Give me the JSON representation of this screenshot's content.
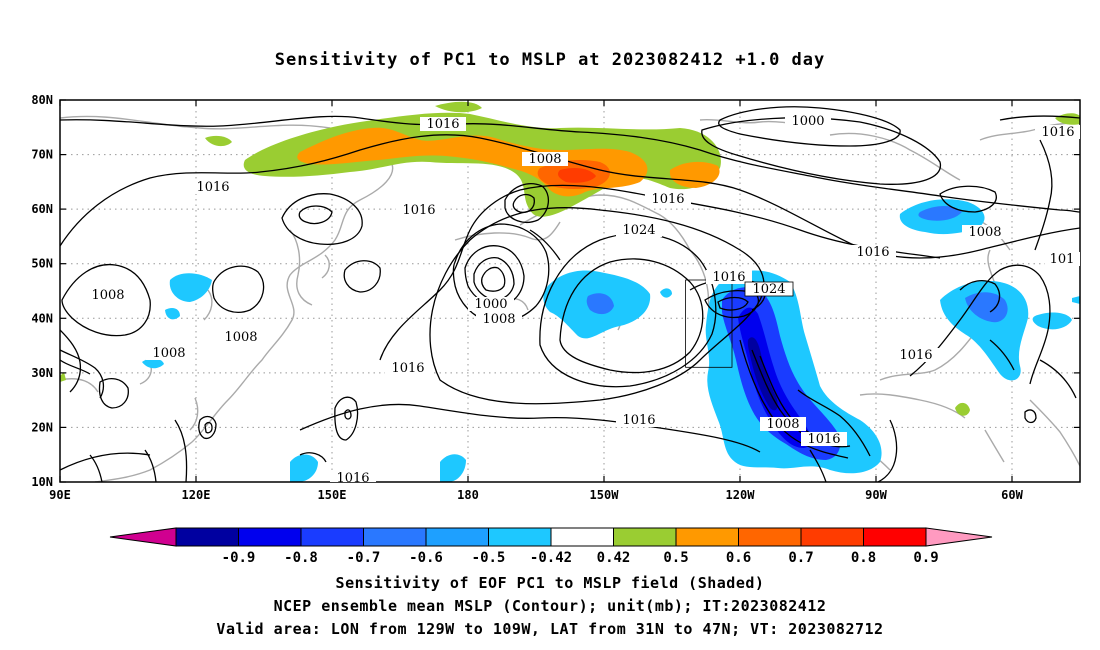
{
  "title": "Sensitivity of PC1 to MSLP at 2023082412 +1.0 day",
  "map": {
    "lat_labels": [
      "80N",
      "70N",
      "60N",
      "50N",
      "40N",
      "30N",
      "20N",
      "10N"
    ],
    "lon_labels": [
      "90E",
      "120E",
      "150E",
      "180",
      "150W",
      "120W",
      "90W",
      "60W"
    ],
    "contour_labels": [
      {
        "text": "1016"
      },
      {
        "text": "1008"
      },
      {
        "text": "1000"
      },
      {
        "text": "1016"
      },
      {
        "text": "1016"
      },
      {
        "text": "1016"
      },
      {
        "text": "1008"
      },
      {
        "text": "1016"
      },
      {
        "text": "1024"
      },
      {
        "text": "1016"
      },
      {
        "text": "1024"
      },
      {
        "text": "1016"
      },
      {
        "text": "1008"
      },
      {
        "text": "1016"
      },
      {
        "text": "1008"
      },
      {
        "text": "1008"
      },
      {
        "text": "1000"
      },
      {
        "text": "1008"
      },
      {
        "text": "1016"
      },
      {
        "text": "1016"
      },
      {
        "text": "1008"
      },
      {
        "text": "1016"
      },
      {
        "text": "1016"
      },
      {
        "text": "1008"
      },
      {
        "text": "1016"
      },
      {
        "text": "101"
      }
    ],
    "valid_area": {
      "lon_from": "129W",
      "lon_to": "109W",
      "lat_from": "31N",
      "lat_to": "47N"
    }
  },
  "colorbar": {
    "colors": [
      "#d00090",
      "#0000a0",
      "#0000ee",
      "#1a3cff",
      "#2a78ff",
      "#1ea0ff",
      "#1ec8ff",
      "#ffffff",
      "#9acd32",
      "#ff9900",
      "#ff6600",
      "#ff3c00",
      "#ff0000",
      "#ff9ac0"
    ],
    "labels": [
      "-0.9",
      "-0.8",
      "-0.7",
      "-0.6",
      "-0.5",
      "-0.42",
      "0.42",
      "0.5",
      "0.6",
      "0.7",
      "0.8",
      "0.9"
    ]
  },
  "captions": {
    "line1": "Sensitivity of EOF PC1 to MSLP field (Shaded)",
    "line2": "NCEP ensemble mean MSLP (Contour); unit(mb); IT:2023082412",
    "line3": "Valid area: LON from 129W to 109W, LAT from 31N to 47N; VT: 2023082712"
  }
}
